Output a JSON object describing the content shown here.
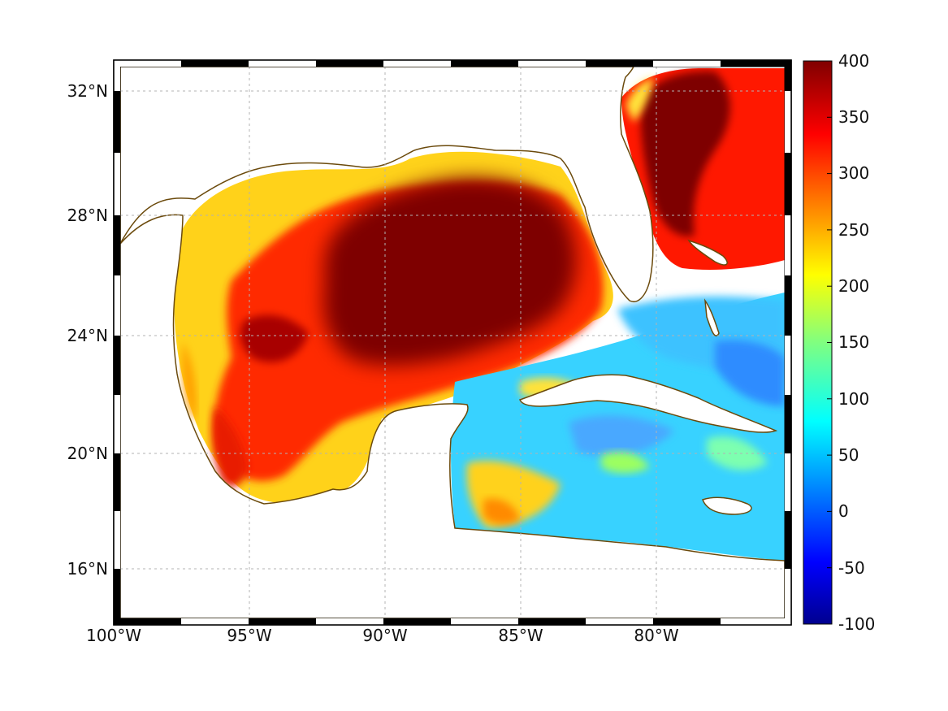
{
  "map": {
    "lat_labels": [
      "32°N",
      "28°N",
      "24°N",
      "20°N",
      "16°N"
    ],
    "lon_labels": [
      "100°W",
      "95°W",
      "90°W",
      "85°W",
      "80°W"
    ],
    "grid": true,
    "coastline_color": "#6b4a0c"
  },
  "colorbar": {
    "colormap": "jet",
    "tick_labels": [
      "400",
      "350",
      "300",
      "250",
      "200",
      "150",
      "100",
      "50",
      "0",
      "-50",
      "-100"
    ],
    "range": [
      -100,
      400
    ]
  }
}
